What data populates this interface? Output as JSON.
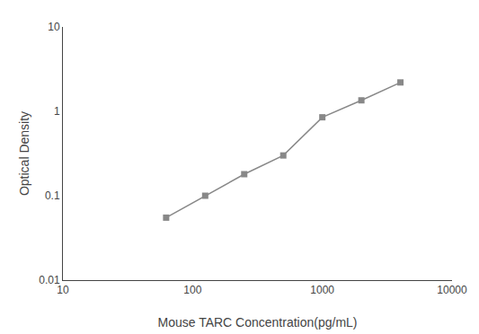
{
  "chart_data": {
    "type": "line",
    "xlabel": "Mouse TARC Concentration(pg/mL)",
    "ylabel": "Optical Density",
    "x": [
      62.5,
      125,
      250,
      500,
      1000,
      2000,
      4000
    ],
    "values": [
      0.055,
      0.1,
      0.18,
      0.3,
      0.85,
      1.35,
      2.2
    ],
    "color": "#888888",
    "marker": "square",
    "line_style": "solid",
    "log": true,
    "grid": false,
    "xlim": [
      10,
      10000
    ],
    "ylim": [
      0.01,
      10
    ],
    "xticks": [
      10,
      100,
      1000,
      10000
    ],
    "yticks": [
      0.01,
      0.1,
      1,
      10
    ]
  }
}
